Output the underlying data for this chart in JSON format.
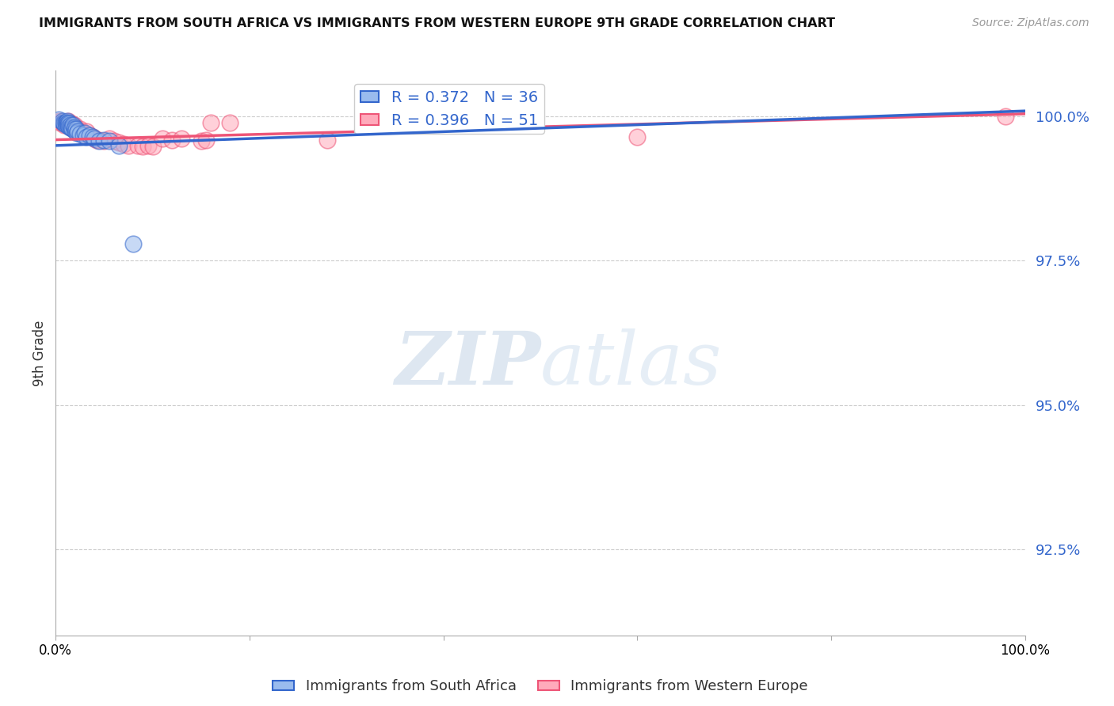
{
  "title": "IMMIGRANTS FROM SOUTH AFRICA VS IMMIGRANTS FROM WESTERN EUROPE 9TH GRADE CORRELATION CHART",
  "source": "Source: ZipAtlas.com",
  "ylabel": "9th Grade",
  "ylabel_ticks": [
    "92.5%",
    "95.0%",
    "97.5%",
    "100.0%"
  ],
  "ylabel_tick_vals": [
    0.925,
    0.95,
    0.975,
    1.0
  ],
  "xlim": [
    0.0,
    1.0
  ],
  "ylim": [
    0.91,
    1.008
  ],
  "legend_blue_label": "R = 0.372   N = 36",
  "legend_pink_label": "R = 0.396   N = 51",
  "blue_color": "#99BBEE",
  "pink_color": "#FFAABB",
  "trendline_blue": "#3366CC",
  "trendline_pink": "#EE5577",
  "blue_scatter_x": [
    0.003,
    0.007,
    0.008,
    0.009,
    0.01,
    0.01,
    0.011,
    0.012,
    0.012,
    0.013,
    0.013,
    0.014,
    0.014,
    0.015,
    0.015,
    0.016,
    0.017,
    0.018,
    0.019,
    0.019,
    0.02,
    0.021,
    0.022,
    0.023,
    0.025,
    0.028,
    0.03,
    0.032,
    0.035,
    0.038,
    0.04,
    0.045,
    0.05,
    0.055,
    0.065,
    0.08
  ],
  "blue_scatter_y": [
    0.9995,
    0.9992,
    0.999,
    0.9988,
    0.999,
    0.9988,
    0.9985,
    0.9992,
    0.9988,
    0.999,
    0.9985,
    0.9988,
    0.9983,
    0.9985,
    0.9982,
    0.998,
    0.998,
    0.9985,
    0.9982,
    0.9978,
    0.9975,
    0.9978,
    0.9972,
    0.9975,
    0.997,
    0.9968,
    0.9972,
    0.9965,
    0.9968,
    0.9965,
    0.9962,
    0.9958,
    0.996,
    0.9958,
    0.995,
    0.978
  ],
  "pink_scatter_x": [
    0.004,
    0.005,
    0.008,
    0.009,
    0.01,
    0.011,
    0.012,
    0.013,
    0.014,
    0.015,
    0.015,
    0.016,
    0.017,
    0.018,
    0.019,
    0.02,
    0.021,
    0.022,
    0.023,
    0.024,
    0.025,
    0.026,
    0.027,
    0.028,
    0.03,
    0.032,
    0.035,
    0.038,
    0.04,
    0.042,
    0.045,
    0.05,
    0.055,
    0.06,
    0.065,
    0.07,
    0.075,
    0.085,
    0.09,
    0.095,
    0.1,
    0.11,
    0.12,
    0.13,
    0.15,
    0.155,
    0.16,
    0.18,
    0.28,
    0.6,
    0.98
  ],
  "pink_scatter_y": [
    0.9992,
    0.999,
    0.9988,
    0.9985,
    0.999,
    0.9988,
    0.999,
    0.9992,
    0.9988,
    0.9985,
    0.9982,
    0.9988,
    0.9985,
    0.9982,
    0.9985,
    0.998,
    0.9975,
    0.9978,
    0.9975,
    0.9972,
    0.9978,
    0.9975,
    0.9972,
    0.997,
    0.9968,
    0.9975,
    0.9968,
    0.9965,
    0.9962,
    0.996,
    0.996,
    0.9958,
    0.9962,
    0.9958,
    0.9955,
    0.9952,
    0.995,
    0.995,
    0.9948,
    0.995,
    0.9948,
    0.9962,
    0.996,
    0.9962,
    0.9958,
    0.996,
    0.999,
    0.999,
    0.996,
    0.9965,
    1.0
  ],
  "blue_trend_x": [
    0.0,
    1.0
  ],
  "blue_trend_y_start": 0.995,
  "blue_trend_y_end": 1.001,
  "pink_trend_x": [
    0.0,
    1.0
  ],
  "pink_trend_y_start": 0.996,
  "pink_trend_y_end": 1.0005,
  "watermark_zip": "ZIP",
  "watermark_atlas": "atlas",
  "background_color": "#ffffff",
  "grid_color": "#cccccc"
}
